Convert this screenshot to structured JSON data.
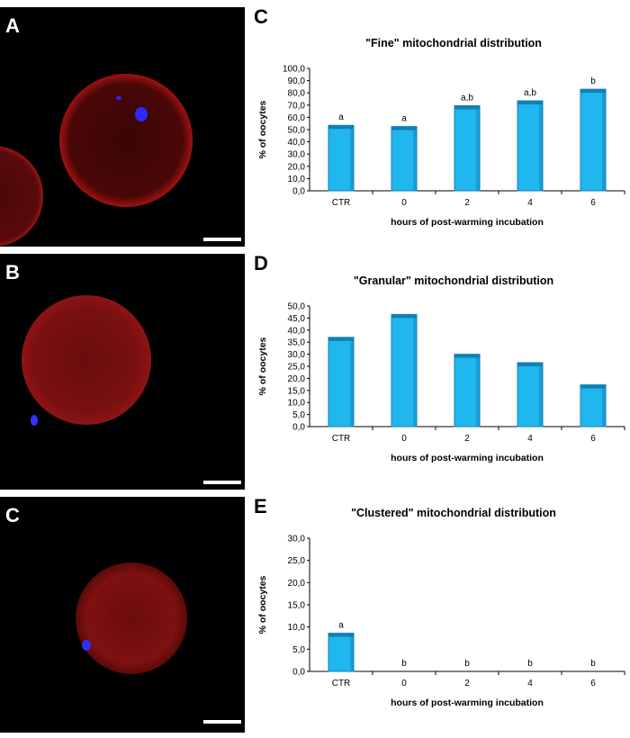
{
  "micrographs": [
    {
      "label": "A"
    },
    {
      "label": "B"
    },
    {
      "label": "C"
    }
  ],
  "colors": {
    "bar": "#1fb7ee",
    "bar_dark": "#1180b3",
    "mito": "#8a1010",
    "dna": "#2828ff"
  },
  "chart_data": [
    {
      "panel": "C",
      "type": "bar",
      "title": "\"Fine\" mitochondrial distribution",
      "xlabel": "hours of post-warming incubation",
      "ylabel": "% of oocytes",
      "categories": [
        "CTR",
        "0",
        "2",
        "4",
        "6"
      ],
      "values": [
        53.5,
        52.5,
        69.5,
        73.5,
        83.0
      ],
      "annotations": [
        "a",
        "a",
        "a,b",
        "a,b",
        "b"
      ],
      "ylim": [
        0,
        100
      ],
      "yticks": [
        "0,0",
        "10,0",
        "20,0",
        "30,0",
        "40,0",
        "50,0",
        "60,0",
        "70,0",
        "80,0",
        "90,0",
        "100,0"
      ],
      "grid": false
    },
    {
      "panel": "D",
      "type": "bar",
      "title": "\"Granular\" mitochondrial distribution",
      "xlabel": "hours of post-warming incubation",
      "ylabel": "% of oocytes",
      "categories": [
        "CTR",
        "0",
        "2",
        "4",
        "6"
      ],
      "values": [
        37.0,
        46.5,
        30.0,
        26.5,
        17.3
      ],
      "annotations": [
        "",
        "",
        "",
        "",
        ""
      ],
      "ylim": [
        0,
        50
      ],
      "yticks": [
        "0,0",
        "5,0",
        "10,0",
        "15,0",
        "20,0",
        "25,0",
        "30,0",
        "35,0",
        "40,0",
        "45,0",
        "50,0"
      ],
      "grid": false
    },
    {
      "panel": "E",
      "type": "bar",
      "title": "\"Clustered\" mitochondrial distribution",
      "xlabel": "hours of post-warming incubation",
      "ylabel": "% of oocytes",
      "categories": [
        "CTR",
        "0",
        "2",
        "4",
        "6"
      ],
      "values": [
        8.6,
        0,
        0,
        0,
        0
      ],
      "annotations": [
        "a",
        "b",
        "b",
        "b",
        "b"
      ],
      "ylim": [
        0,
        30
      ],
      "yticks": [
        "0,0",
        "5,0",
        "10,0",
        "15,0",
        "20,0",
        "25,0",
        "30,0"
      ],
      "grid": false
    }
  ]
}
